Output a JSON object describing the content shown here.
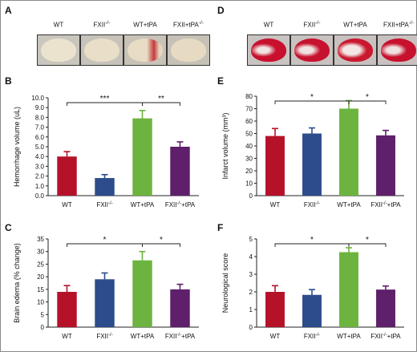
{
  "panel_labels": [
    "A",
    "B",
    "C",
    "D",
    "E",
    "F"
  ],
  "groups": [
    "WT",
    "FXII",
    "WT+tPA",
    "FXII+tPA"
  ],
  "group_super": [
    "",
    "-/-",
    "",
    "-/-"
  ],
  "bar_colors": [
    "#b5122a",
    "#2c4c8c",
    "#6db33f",
    "#5e1f6b"
  ],
  "photos": {
    "A": {
      "labels": [
        "WT",
        "FXII",
        "WT+tPA",
        "FXII+tPA"
      ],
      "super": [
        "",
        "-/-",
        "",
        "-/-"
      ]
    },
    "D": {
      "labels": [
        "WT",
        "FXII",
        "WT+tPA",
        "FXII+tPA"
      ],
      "super": [
        "",
        "-/-",
        "",
        "-/-"
      ]
    }
  },
  "chart_data": [
    {
      "id": "B",
      "type": "bar",
      "categories": [
        "WT",
        "FXII-/-",
        "WT+tPA",
        "FXII-/-+tPA"
      ],
      "values": [
        4.0,
        1.8,
        7.9,
        5.0
      ],
      "errors": [
        0.5,
        0.35,
        0.8,
        0.5
      ],
      "ylabel": "Hemorrhage volume (uL)",
      "ylim": [
        0,
        10
      ],
      "yticks": [
        "0.0",
        "1.0",
        "2.0",
        "3.0",
        "4.0",
        "5.0",
        "6.0",
        "7.0",
        "8.0",
        "9.0",
        "10.0"
      ],
      "significance": [
        {
          "from": 0,
          "to": 2,
          "label": "***"
        },
        {
          "from": 2,
          "to": 3,
          "label": "**"
        }
      ]
    },
    {
      "id": "C",
      "type": "bar",
      "categories": [
        "WT",
        "FXII-/-",
        "WT+tPA",
        "FXII-/-+tPA"
      ],
      "values": [
        14.0,
        19.0,
        26.5,
        15.0
      ],
      "errors": [
        2.5,
        2.5,
        3.5,
        2.0
      ],
      "ylabel": "Brain edema (% change)",
      "ylim": [
        0,
        35
      ],
      "yticks": [
        "0",
        "5",
        "10",
        "15",
        "20",
        "25",
        "30",
        "35"
      ],
      "significance": [
        {
          "from": 0,
          "to": 2,
          "label": "*"
        },
        {
          "from": 2,
          "to": 3,
          "label": "*"
        }
      ]
    },
    {
      "id": "E",
      "type": "bar",
      "categories": [
        "WT",
        "FXII-/-",
        "WT+tPA",
        "FXII-/-+tPA"
      ],
      "values": [
        48,
        50,
        70,
        48.5
      ],
      "errors": [
        6,
        4.5,
        6.5,
        4
      ],
      "ylabel": "Infarct volume (mm³)",
      "ylim": [
        0,
        80
      ],
      "yticks": [
        "0",
        "10",
        "20",
        "30",
        "40",
        "50",
        "60",
        "70",
        "80"
      ],
      "significance": [
        {
          "from": 0,
          "to": 2,
          "label": "*"
        },
        {
          "from": 2,
          "to": 3,
          "label": "*"
        }
      ]
    },
    {
      "id": "F",
      "type": "bar",
      "categories": [
        "WT",
        "FXII-/-",
        "WT+tPA",
        "FXII-/-+tPA"
      ],
      "values": [
        2.0,
        1.83,
        4.25,
        2.13
      ],
      "errors": [
        0.35,
        0.3,
        0.25,
        0.2
      ],
      "ylabel": "Neurological score",
      "ylim": [
        0,
        5
      ],
      "yticks": [
        "0",
        "1",
        "2",
        "3",
        "4",
        "5"
      ],
      "significance": [
        {
          "from": 0,
          "to": 2,
          "label": "*"
        },
        {
          "from": 2,
          "to": 3,
          "label": "*"
        }
      ]
    }
  ]
}
